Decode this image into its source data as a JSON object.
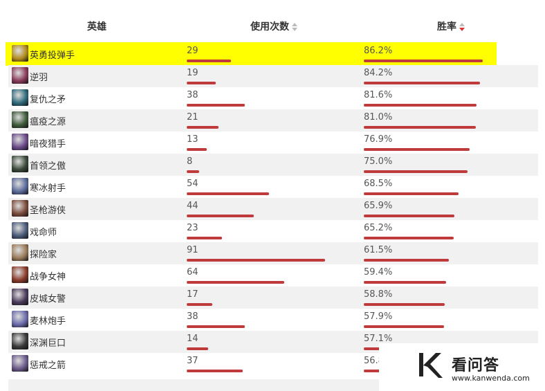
{
  "header": {
    "hero_label": "英雄",
    "uses_label": "使用次数",
    "winrate_label": "胜率"
  },
  "rows": [
    {
      "name": "英勇投弹手",
      "uses": "29",
      "uses_value": 29,
      "winrate": "86.2%",
      "winrate_value": 86.2,
      "highlighted": true,
      "avatar_color": "#b08a1e"
    },
    {
      "name": "逆羽",
      "uses": "19",
      "uses_value": 19,
      "winrate": "84.2%",
      "winrate_value": 84.2,
      "highlighted": false,
      "avatar_color": "#8a3a5a"
    },
    {
      "name": "复仇之矛",
      "uses": "38",
      "uses_value": 38,
      "winrate": "81.6%",
      "winrate_value": 81.6,
      "highlighted": false,
      "avatar_color": "#2f6a7a"
    },
    {
      "name": "瘟疫之源",
      "uses": "21",
      "uses_value": 21,
      "winrate": "81.0%",
      "winrate_value": 81.0,
      "highlighted": false,
      "avatar_color": "#3d5a3a"
    },
    {
      "name": "暗夜猎手",
      "uses": "13",
      "uses_value": 13,
      "winrate": "76.9%",
      "winrate_value": 76.9,
      "highlighted": false,
      "avatar_color": "#6a4a8a"
    },
    {
      "name": "首领之傲",
      "uses": "8",
      "uses_value": 8,
      "winrate": "75.0%",
      "winrate_value": 75.0,
      "highlighted": false,
      "avatar_color": "#3a4a3a"
    },
    {
      "name": "寒冰射手",
      "uses": "54",
      "uses_value": 54,
      "winrate": "68.5%",
      "winrate_value": 68.5,
      "highlighted": false,
      "avatar_color": "#5a6a9a"
    },
    {
      "name": "圣枪游侠",
      "uses": "44",
      "uses_value": 44,
      "winrate": "65.9%",
      "winrate_value": 65.9,
      "highlighted": false,
      "avatar_color": "#7a4a3a"
    },
    {
      "name": "戏命师",
      "uses": "23",
      "uses_value": 23,
      "winrate": "65.2%",
      "winrate_value": 65.2,
      "highlighted": false,
      "avatar_color": "#4a5a7a"
    },
    {
      "name": "探险家",
      "uses": "91",
      "uses_value": 91,
      "winrate": "61.5%",
      "winrate_value": 61.5,
      "highlighted": false,
      "avatar_color": "#9a7a5a"
    },
    {
      "name": "战争女神",
      "uses": "64",
      "uses_value": 64,
      "winrate": "59.4%",
      "winrate_value": 59.4,
      "highlighted": false,
      "avatar_color": "#8a3a2a"
    },
    {
      "name": "皮城女警",
      "uses": "17",
      "uses_value": 17,
      "winrate": "58.8%",
      "winrate_value": 58.8,
      "highlighted": false,
      "avatar_color": "#4a3a5a"
    },
    {
      "name": "麦林炮手",
      "uses": "38",
      "uses_value": 38,
      "winrate": "57.9%",
      "winrate_value": 57.9,
      "highlighted": false,
      "avatar_color": "#6a6aaa"
    },
    {
      "name": "深渊巨口",
      "uses": "14",
      "uses_value": 14,
      "winrate": "57.1%",
      "winrate_value": 57.1,
      "highlighted": false,
      "avatar_color": "#3a3a3a"
    },
    {
      "name": "惩戒之箭",
      "uses": "37",
      "uses_value": 37,
      "winrate": "56.8",
      "winrate_value": 56.8,
      "highlighted": false,
      "avatar_color": "#6a5a8a"
    }
  ],
  "watermark": {
    "title": "看问答",
    "url": "www.kanwenda.com"
  },
  "colors": {
    "bar": "#c0393b",
    "highlight": "#ffff00",
    "alt_row": "#f1f1f1"
  }
}
